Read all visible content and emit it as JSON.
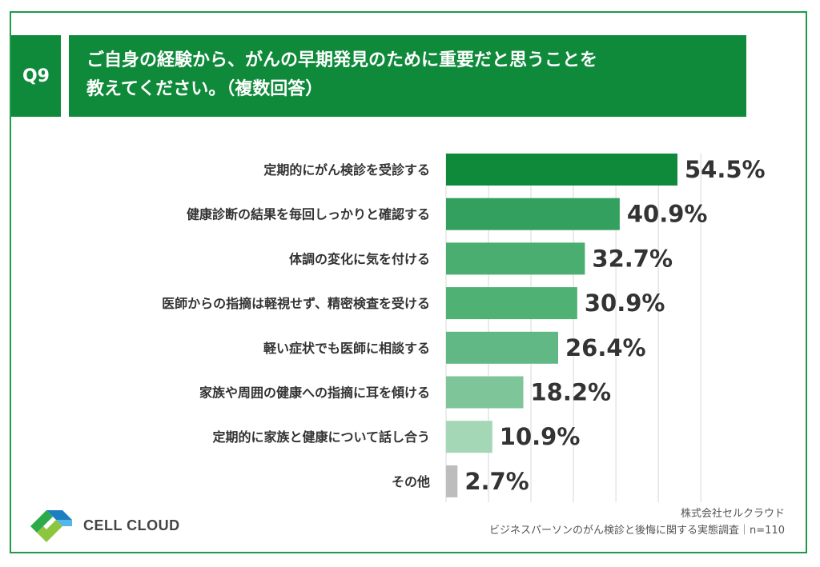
{
  "question": {
    "tag": "Q9",
    "line1": "ご自身の経験から、がんの早期発見のために重要だと思うことを",
    "line2": "教えてください。（複数回答）"
  },
  "chart_data": {
    "type": "bar",
    "orientation": "horizontal",
    "categories": [
      "定期的にがん検診を受診する",
      "健康診断の結果を毎回しっかりと確認する",
      "体調の変化に気を付ける",
      "医師からの指摘は軽視せず、精密検査を受ける",
      "軽い症状でも医師に相談する",
      "家族や周囲の健康への指摘に耳を傾ける",
      "定期的に家族と健康について話し合う",
      "その他"
    ],
    "values": [
      54.5,
      40.9,
      32.7,
      30.9,
      26.4,
      18.2,
      10.9,
      2.7
    ],
    "value_labels": [
      "54.5%",
      "40.9%",
      "32.7%",
      "30.9%",
      "26.4%",
      "18.2%",
      "10.9%",
      "2.7%"
    ],
    "bar_colors": [
      "#0f8a3a",
      "#34a060",
      "#4aae70",
      "#4fb174",
      "#62b884",
      "#7ec69a",
      "#a4d7b6",
      "#bdbdbd"
    ],
    "xlim": [
      0,
      60
    ],
    "grid": true
  },
  "footer": {
    "logo_text": "CELL CLOUD",
    "source_line1": "株式会社セルクラウド",
    "source_line2": "ビジネスパーソンのがん検診と後悔に関する実態調査｜n=110"
  }
}
